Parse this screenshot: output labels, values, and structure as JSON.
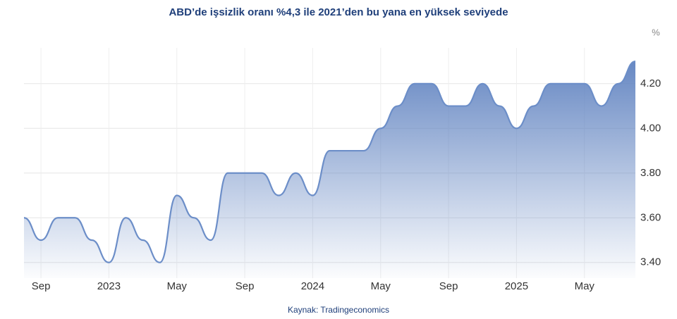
{
  "chart_data": {
    "type": "area",
    "title": "ABD’de işsizlik oranı %4,3 ile 2021’den bu yana en yüksek seviyede",
    "y_unit": "%",
    "source": "Kaynak: Tradingeconomics",
    "categories": [
      null,
      "Sep",
      null,
      null,
      null,
      "2023",
      null,
      null,
      null,
      "May",
      null,
      null,
      null,
      "Sep",
      null,
      null,
      null,
      "2024",
      null,
      null,
      null,
      "May",
      null,
      null,
      null,
      "Sep",
      null,
      null,
      null,
      "2025",
      null,
      null,
      null,
      "May",
      null,
      null,
      null
    ],
    "series": [
      {
        "name": "İşsizlik oranı",
        "color": "#6c8ec8",
        "values": [
          3.6,
          3.5,
          3.6,
          3.6,
          3.5,
          3.4,
          3.6,
          3.5,
          3.4,
          3.7,
          3.6,
          3.5,
          3.8,
          3.8,
          3.8,
          3.7,
          3.8,
          3.7,
          3.9,
          3.9,
          3.9,
          4.0,
          4.1,
          4.2,
          4.2,
          4.1,
          4.1,
          4.2,
          4.1,
          4.0,
          4.1,
          4.2,
          4.2,
          4.2,
          4.1,
          4.2,
          4.3
        ]
      }
    ],
    "ylim": [
      3.33,
      4.36
    ],
    "yticks": [
      {
        "value": 3.4,
        "label": "3.40"
      },
      {
        "value": 3.6,
        "label": "3.60"
      },
      {
        "value": 3.8,
        "label": "3.80"
      },
      {
        "value": 4.0,
        "label": "4.00"
      },
      {
        "value": 4.2,
        "label": "4.20"
      }
    ],
    "grid": true
  }
}
